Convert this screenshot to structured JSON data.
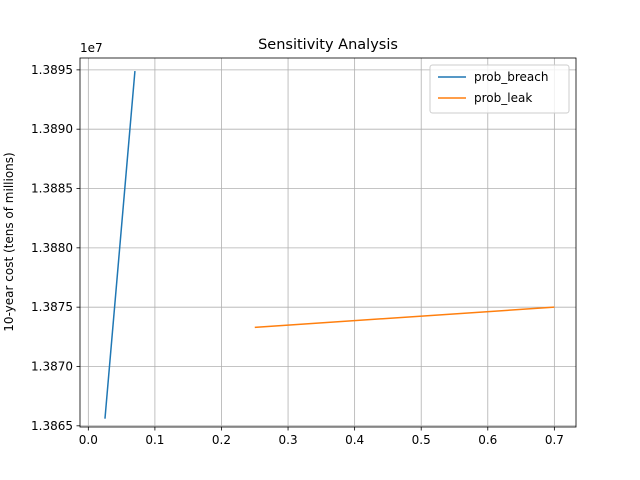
{
  "chart_data": {
    "type": "line",
    "title": "Sensitivity Analysis",
    "xlabel": "",
    "ylabel": "10-year cost (tens of millions)",
    "offset_label": "1e7",
    "xlim": [
      -0.0125,
      0.7325
    ],
    "ylim": [
      13864900,
      13896000
    ],
    "x_ticks": [
      0.0,
      0.1,
      0.2,
      0.3,
      0.4,
      0.5,
      0.6,
      0.7
    ],
    "x_tick_labels": [
      "0.0",
      "0.1",
      "0.2",
      "0.3",
      "0.4",
      "0.5",
      "0.6",
      "0.7"
    ],
    "y_ticks": [
      13865000,
      13870000,
      13875000,
      13880000,
      13885000,
      13890000,
      13895000
    ],
    "y_tick_labels": [
      "1.3865",
      "1.3870",
      "1.3875",
      "1.3880",
      "1.3885",
      "1.3890",
      "1.3895"
    ],
    "grid": true,
    "legend_position": "top-right",
    "series": [
      {
        "name": "prob_breach",
        "color": "#1f77b4",
        "x": [
          0.025,
          0.07
        ],
        "y": [
          13865600,
          13894900
        ]
      },
      {
        "name": "prob_leak",
        "color": "#ff7f0e",
        "x": [
          0.25,
          0.7
        ],
        "y": [
          13873300,
          13875000
        ]
      }
    ]
  }
}
